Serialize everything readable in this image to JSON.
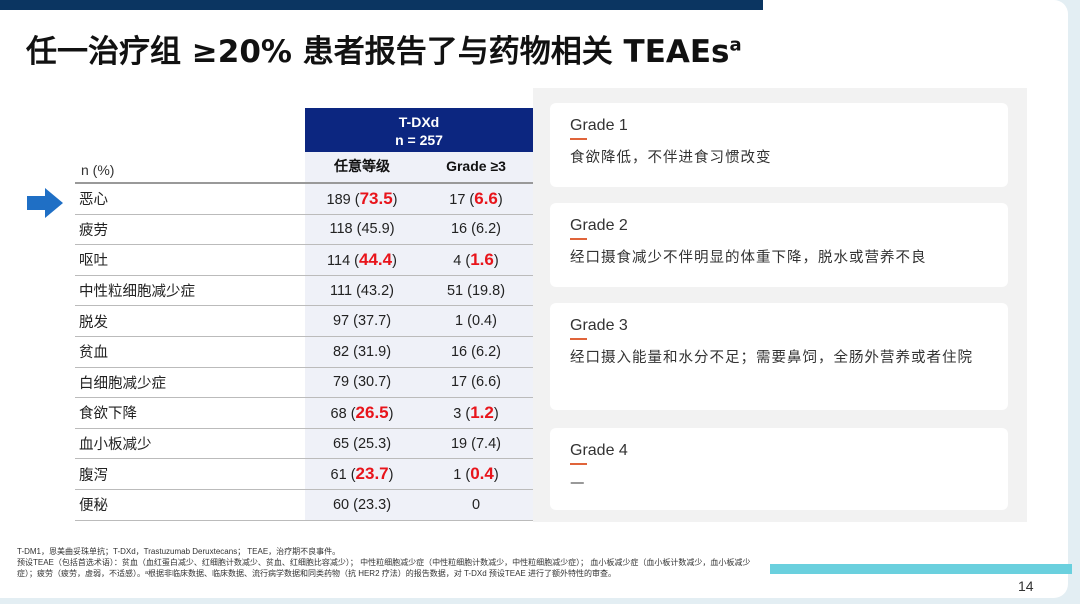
{
  "title": "任一治疗组 ≥20% 患者报告了与药物相关 TEAEs",
  "title_sup": "a",
  "table": {
    "group": "T-DXd",
    "n": "n = 257",
    "col_any": "任意等级",
    "col_g3": "Grade ≥3",
    "unit_label": "n (%)",
    "rows": [
      {
        "name": "恶心",
        "any_n": "189 (",
        "any_p": "73.5",
        "any_red": true,
        "g3_n": "17 (",
        "g3_p": "6.6",
        "g3_red": true
      },
      {
        "name": "疲劳",
        "any_n": "118 (",
        "any_p": "45.9",
        "any_red": false,
        "g3_n": "16 (",
        "g3_p": "6.2",
        "g3_red": false
      },
      {
        "name": "呕吐",
        "any_n": "114 (",
        "any_p": "44.4",
        "any_red": true,
        "g3_n": "4 (",
        "g3_p": "1.6",
        "g3_red": true
      },
      {
        "name": "中性粒细胞减少症",
        "any_n": "111 (",
        "any_p": "43.2",
        "any_red": false,
        "g3_n": "51 (",
        "g3_p": "19.8",
        "g3_red": false
      },
      {
        "name": "脱发",
        "any_n": "97 (",
        "any_p": "37.7",
        "any_red": false,
        "g3_n": "1 (",
        "g3_p": "0.4",
        "g3_red": false
      },
      {
        "name": "贫血",
        "any_n": "82 (",
        "any_p": "31.9",
        "any_red": false,
        "g3_n": "16 (",
        "g3_p": "6.2",
        "g3_red": false
      },
      {
        "name": "白细胞减少症",
        "any_n": "79 (",
        "any_p": "30.7",
        "any_red": false,
        "g3_n": "17 (",
        "g3_p": "6.6",
        "g3_red": false
      },
      {
        "name": "食欲下降",
        "any_n": "68 (",
        "any_p": "26.5",
        "any_red": true,
        "g3_n": "3 (",
        "g3_p": "1.2",
        "g3_red": true
      },
      {
        "name": "血小板减少",
        "any_n": "65 (",
        "any_p": "25.3",
        "any_red": false,
        "g3_n": "19 (",
        "g3_p": "7.4",
        "g3_red": false
      },
      {
        "name": "腹泻",
        "any_n": "61 (",
        "any_p": "23.7",
        "any_red": true,
        "g3_n": "1 (",
        "g3_p": "0.4",
        "g3_red": true
      },
      {
        "name": "便秘",
        "any_n": "60 (",
        "any_p": "23.3",
        "any_red": false,
        "g3_n": "0",
        "g3_p": null,
        "g3_red": false
      }
    ]
  },
  "grades": [
    {
      "title": "Grade 1",
      "desc": "食欲降低，不伴进食习惯改变"
    },
    {
      "title": "Grade 2",
      "desc": "经口摄食减少不伴明显的体重下降，脱水或营养不良"
    },
    {
      "title": "Grade 3",
      "desc": "经口摄入能量和水分不足；需要鼻饲，全肠外营养或者住院"
    },
    {
      "title": "Grade 4",
      "desc": "—"
    }
  ],
  "footnote": [
    "T-DM1，恩美曲妥珠单抗；T-DXd，Trastuzumab Deruxtecans； TEAE，治疗期不良事件。",
    "预设TEAE（包括首选术语）：贫血（血红蛋白减少、红细胞计数减少、贫血、红细胞比容减少）； 中性粒细胞减少症（中性粒细胞计数减少，中性粒细胞减少症）； 血小板减少症（血小板计数减少，血小板减少症）；疲劳（疲劳，虚弱，不适感）。ᵃ根据非临床数据、临床数据、流行病学数据和同类药物（抗 HER2 疗法）的报告数据，对 T-DXd 预设TEAE 进行了额外特性的审查。"
  ],
  "page_number": "14",
  "colors": {
    "header_blue": "#0c2680",
    "highlight_red": "#e8141b",
    "arrow_blue": "#1f6fc5",
    "accent_teal": "#6ad0de",
    "top_bar": "#0b3561"
  }
}
